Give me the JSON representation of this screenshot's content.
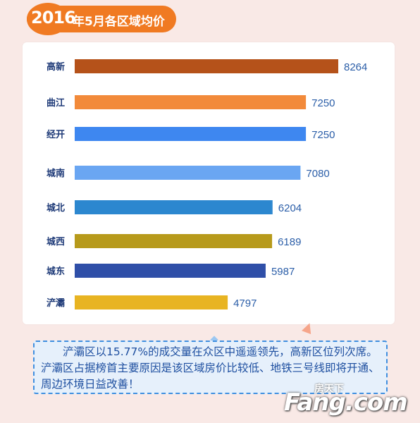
{
  "header": {
    "year": "2016",
    "title": "年5月各区域均价"
  },
  "chart_data": {
    "type": "bar",
    "orientation": "horizontal",
    "categories": [
      "高新",
      "曲江",
      "经开",
      "城南",
      "城北",
      "城西",
      "城东",
      "浐灞"
    ],
    "values": [
      8264,
      7250,
      7250,
      7080,
      6204,
      6189,
      5987,
      4797
    ],
    "colors": [
      "#b5521a",
      "#f28a3a",
      "#3e87f0",
      "#6aa6f2",
      "#2c87cf",
      "#b79a1b",
      "#2f4fa8",
      "#e8b422"
    ],
    "title": "",
    "xlabel": "",
    "ylabel": "",
    "grid": false,
    "legend": "none"
  },
  "note": {
    "text": "浐灞区以15.77%的成交量在众区中遥遥领先，高新区位列次席。浐灞区占据榜首主要原因是该区域房价比较低、地铁三号线即将开通、周边环境日益改善！"
  },
  "watermark": {
    "small": "房天下",
    "main": "Fang.com"
  }
}
